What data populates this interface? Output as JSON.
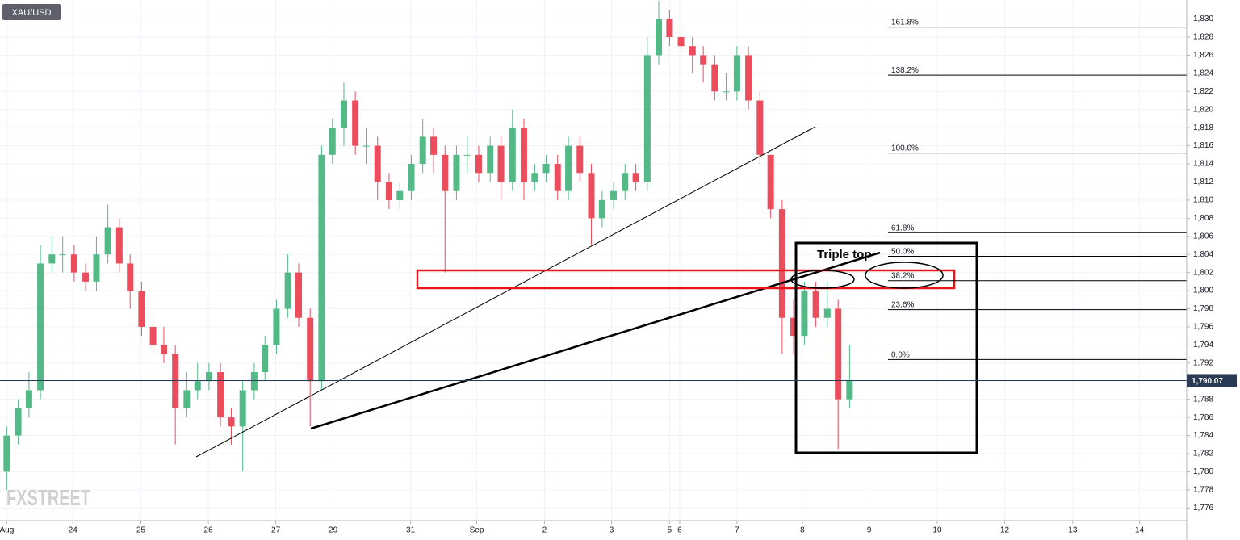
{
  "chart_data": {
    "type": "candlestick",
    "symbol": "XAU/USD",
    "watermark": "FXSTREET",
    "annotation": "Triple top",
    "up_color": "#53b987",
    "down_color": "#eb4d5c",
    "grid": true,
    "xlim": [
      -0.1,
      17.5
    ],
    "ylim": [
      1774.6,
      1832.1
    ],
    "xticks": [
      {
        "value": 0,
        "label": "Aug"
      },
      {
        "value": 0.98,
        "label": "24"
      },
      {
        "value": 1.99,
        "label": "25"
      },
      {
        "value": 2.99,
        "label": "26"
      },
      {
        "value": 3.99,
        "label": "27"
      },
      {
        "value": 4.84,
        "label": "29"
      },
      {
        "value": 5.99,
        "label": "31"
      },
      {
        "value": 6.97,
        "label": "Sep"
      },
      {
        "value": 7.975,
        "label": "2"
      },
      {
        "value": 8.97,
        "label": "3"
      },
      {
        "value": 9.83,
        "label": "5"
      },
      {
        "value": 9.98,
        "label": "6"
      },
      {
        "value": 10.83,
        "label": "7"
      },
      {
        "value": 11.8,
        "label": "8"
      },
      {
        "value": 12.79,
        "label": "9"
      },
      {
        "value": 13.8,
        "label": "10"
      },
      {
        "value": 14.8,
        "label": "12"
      },
      {
        "value": 15.81,
        "label": "13"
      },
      {
        "value": 16.8,
        "label": "14"
      }
    ],
    "yticks": [
      {
        "value": 1776,
        "label": "1,776"
      },
      {
        "value": 1778,
        "label": "1,778"
      },
      {
        "value": 1780,
        "label": "1,780"
      },
      {
        "value": 1782,
        "label": "1,782"
      },
      {
        "value": 1784,
        "label": "1,784"
      },
      {
        "value": 1786,
        "label": "1,786"
      },
      {
        "value": 1788,
        "label": "1,788"
      },
      {
        "value": 1790,
        "label": "1,790"
      },
      {
        "value": 1792,
        "label": "1,792"
      },
      {
        "value": 1794,
        "label": "1,794"
      },
      {
        "value": 1796,
        "label": "1,796"
      },
      {
        "value": 1798,
        "label": "1,798"
      },
      {
        "value": 1800,
        "label": "1,800"
      },
      {
        "value": 1802,
        "label": "1,802"
      },
      {
        "value": 1804,
        "label": "1,804"
      },
      {
        "value": 1806,
        "label": "1,806"
      },
      {
        "value": 1808,
        "label": "1,808"
      },
      {
        "value": 1810,
        "label": "1,810"
      },
      {
        "value": 1812,
        "label": "1,812"
      },
      {
        "value": 1814,
        "label": "1,814"
      },
      {
        "value": 1816,
        "label": "1,816"
      },
      {
        "value": 1818,
        "label": "1,818"
      },
      {
        "value": 1820,
        "label": "1,820"
      },
      {
        "value": 1822,
        "label": "1,822"
      },
      {
        "value": 1824,
        "label": "1,824"
      },
      {
        "value": 1826,
        "label": "1,826"
      },
      {
        "value": 1828,
        "label": "1,828"
      },
      {
        "value": 1830,
        "label": "1,830"
      }
    ],
    "last_price": {
      "value": 1790.07,
      "label": "1,790.07"
    },
    "fib_levels": [
      {
        "label": "161.8%",
        "price": 1829.1
      },
      {
        "label": "138.2%",
        "price": 1823.8
      },
      {
        "label": "100.0%",
        "price": 1815.2
      },
      {
        "label": "61.8%",
        "price": 1806.4
      },
      {
        "label": "50.0%",
        "price": 1803.8
      },
      {
        "label": "38.2%",
        "price": 1801.1
      },
      {
        "label": "23.6%",
        "price": 1797.9
      },
      {
        "label": "0.0%",
        "price": 1792.4
      }
    ],
    "x": [
      0,
      0.17,
      0.33,
      0.5,
      0.67,
      0.83,
      1,
      1.17,
      1.33,
      1.5,
      1.67,
      1.83,
      2,
      2.17,
      2.33,
      2.5,
      2.67,
      2.83,
      3,
      3.17,
      3.33,
      3.5,
      3.67,
      3.83,
      4,
      4.17,
      4.33,
      4.5,
      4.67,
      4.83,
      5,
      5.17,
      5.33,
      5.5,
      5.67,
      5.83,
      6,
      6.17,
      6.33,
      6.5,
      6.67,
      6.83,
      7,
      7.17,
      7.33,
      7.5,
      7.67,
      7.83,
      8,
      8.17,
      8.33,
      8.5,
      8.67,
      8.83,
      9,
      9.17,
      9.33,
      9.5,
      9.67,
      9.83,
      10,
      10.17,
      10.33,
      10.5,
      10.67,
      10.83,
      11,
      11.17,
      11.33,
      11.5,
      11.67,
      11.83,
      12,
      12.17,
      12.33,
      12.5
    ],
    "open": [
      1780,
      1784,
      1787,
      1789,
      1803,
      1804,
      1804,
      1802,
      1801,
      1804,
      1807,
      1803,
      1800,
      1796,
      1794,
      1793,
      1787,
      1789,
      1790,
      1791,
      1786,
      1785,
      1789,
      1791,
      1794,
      1798,
      1802,
      1797,
      1790,
      1815,
      1818,
      1821,
      1816,
      1816,
      1812,
      1810,
      1811,
      1814,
      1817,
      1815,
      1811,
      1815,
      1815,
      1813,
      1816,
      1812,
      1818,
      1812,
      1813,
      1814,
      1811,
      1816,
      1813,
      1808,
      1810,
      1811,
      1813,
      1812,
      1826,
      1830,
      1828,
      1827,
      1826,
      1825,
      1822,
      1822,
      1826,
      1821,
      1815,
      1809,
      1797,
      1795,
      1800,
      1797,
      1798,
      1788
    ],
    "high": [
      1785,
      1788,
      1791,
      1805,
      1806,
      1806,
      1805,
      1803,
      1806,
      1809.5,
      1808,
      1804,
      1801,
      1797,
      1796,
      1794,
      1791,
      1792,
      1792,
      1792,
      1787,
      1790,
      1792,
      1795,
      1799,
      1804,
      1803,
      1798,
      1816,
      1819,
      1823,
      1822,
      1818,
      1817,
      1813,
      1812,
      1815,
      1819,
      1818,
      1816,
      1816,
      1817,
      1816,
      1817,
      1817,
      1820,
      1819,
      1814,
      1815,
      1815,
      1817,
      1817,
      1814,
      1811,
      1812,
      1814,
      1814,
      1828,
      1832,
      1831,
      1829,
      1828,
      1827,
      1826,
      1824,
      1827,
      1827,
      1822,
      1815,
      1810,
      1799,
      1801,
      1801,
      1801,
      1799,
      1794
    ],
    "low": [
      1778,
      1783,
      1786,
      1788,
      1802,
      1802,
      1801,
      1800,
      1800,
      1803,
      1802,
      1798,
      1795,
      1793,
      1792,
      1783,
      1786,
      1788,
      1789,
      1785,
      1783,
      1780,
      1788,
      1790,
      1793,
      1797,
      1796,
      1785,
      1789,
      1814,
      1816,
      1815,
      1814,
      1810,
      1809,
      1809,
      1810,
      1813,
      1813,
      1802,
      1810,
      1813,
      1812,
      1812,
      1810,
      1811,
      1810,
      1811,
      1812,
      1810,
      1810,
      1812,
      1805,
      1807,
      1809,
      1810,
      1811,
      1811,
      1825,
      1827,
      1826,
      1824,
      1823,
      1821,
      1821,
      1821,
      1820,
      1814,
      1808,
      1793,
      1793,
      1794,
      1796,
      1796,
      1782.5,
      1787
    ],
    "close": [
      1784,
      1787,
      1789,
      1803,
      1804,
      1804,
      1802,
      1801,
      1804,
      1807,
      1803,
      1800,
      1796,
      1794,
      1793,
      1787,
      1789,
      1790,
      1791,
      1786,
      1785,
      1789,
      1791,
      1794,
      1798,
      1802,
      1797,
      1790,
      1815,
      1818,
      1821,
      1816,
      1816,
      1812,
      1810,
      1811,
      1814,
      1817,
      1815,
      1811,
      1815,
      1815,
      1813,
      1816,
      1812,
      1818,
      1812,
      1813,
      1814,
      1811,
      1816,
      1813,
      1808,
      1810,
      1811,
      1813,
      1812,
      1826,
      1830,
      1828,
      1827,
      1826,
      1825,
      1822,
      1822,
      1826,
      1821,
      1815,
      1809,
      1797,
      1795,
      1800,
      1797,
      1798,
      1788,
      1790.07
    ]
  }
}
